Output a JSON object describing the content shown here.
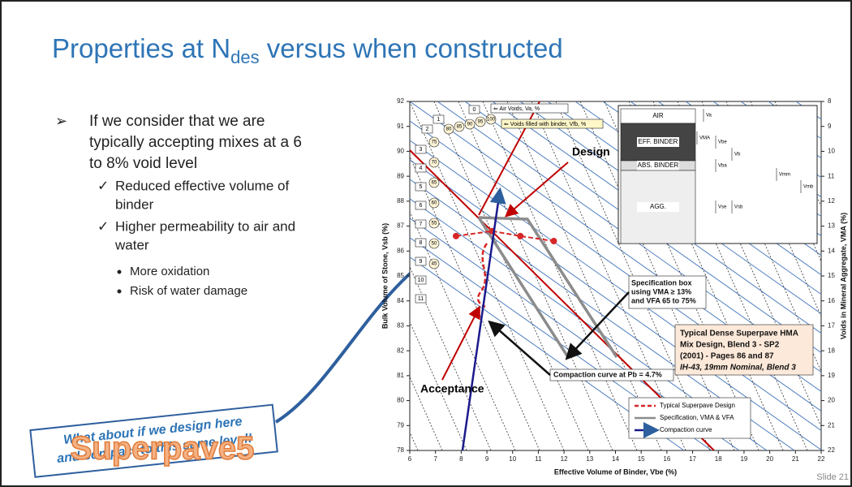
{
  "slide": {
    "title": {
      "main": "Properties at N",
      "sub": "des",
      "rest": " versus when constructed"
    },
    "bullets": {
      "main": [
        "If we consider that we are",
        "typically accepting mixes at a 6",
        "to 8% void level"
      ],
      "checks": [
        [
          "Reduced effective volume of",
          "binder"
        ],
        [
          "Higher permeability to air and",
          "water"
        ]
      ],
      "dots": [
        "More oxidation",
        "Risk of water damage"
      ]
    },
    "callout": [
      "What about if we design here",
      "and compact to this same level!"
    ],
    "logo": "Superpave5",
    "slide_number": "Slide 21",
    "figure": {
      "x_label": "Effective Volume of Binder, Vbe (%)",
      "y_label": "Bulk Volume of Stone, Vsb (%)",
      "y2_label": "Voids in Mineral Aggregate, VMA (%)",
      "xlim": [
        6,
        22
      ],
      "xticks": [
        6,
        7,
        8,
        9,
        10,
        11,
        12,
        13,
        14,
        15,
        16,
        17,
        18,
        19,
        20,
        21,
        22
      ],
      "ylim": [
        78,
        92
      ],
      "yticks": [
        78,
        79,
        80,
        81,
        82,
        83,
        84,
        85,
        86,
        87,
        88,
        89,
        90,
        91,
        92
      ],
      "y2lim": [
        22,
        8
      ],
      "y2ticks": [
        8,
        9,
        10,
        11,
        12,
        13,
        14,
        15,
        16,
        17,
        18,
        19,
        20,
        21,
        22
      ],
      "air_void_boxes": [
        "0",
        "1",
        "2",
        "3",
        "4",
        "5",
        "6",
        "7",
        "8",
        "9",
        "10",
        "11"
      ],
      "vfb_circles": [
        "100",
        "95",
        "90",
        "85",
        "80",
        "75",
        "70",
        "65",
        "60",
        "55",
        "50",
        "45"
      ],
      "key": [
        "⇐ Air Voids, Va, %",
        "⇐ Voids filled with binder, Vfb, %"
      ],
      "phase_labels": [
        "AIR",
        "EFF. BINDER",
        "ABS. BINDER",
        "AGG."
      ],
      "volume_labels": [
        "Va",
        "VMA",
        "Vbe",
        "Vb",
        "Vba",
        "Vse",
        "Vsb",
        "Vmm",
        "Vmb"
      ],
      "annotations": {
        "design": "Design",
        "acceptance": "Acceptance",
        "spec_box": [
          "Specification box",
          "using VMA ≥ 13%",
          "and VFA 65 to 75%"
        ],
        "compaction": "Compaction curve at Pb = 4.7%",
        "mix": [
          "Typical Dense Superpave HMA",
          "Mix Design, Blend 3 - SP2",
          "(2001) - Pages 86 and 87",
          "IH-43, 19mm Nominal, Blend 3"
        ]
      },
      "series": [
        {
          "name": "Typical Superpave Design",
          "color": "#d62728",
          "x": [
            7.8,
            9.2,
            10.3,
            11.6
          ],
          "y": [
            86.6,
            86.8,
            86.6,
            86.4
          ]
        },
        {
          "name": "Specification, VMA & VFA",
          "color": "#8c8c8c"
        },
        {
          "name": "Compaction curve",
          "color": "#1a1a8c",
          "x": [
            8.05,
            9.5
          ],
          "y": [
            78,
            88.4
          ]
        }
      ]
    }
  }
}
